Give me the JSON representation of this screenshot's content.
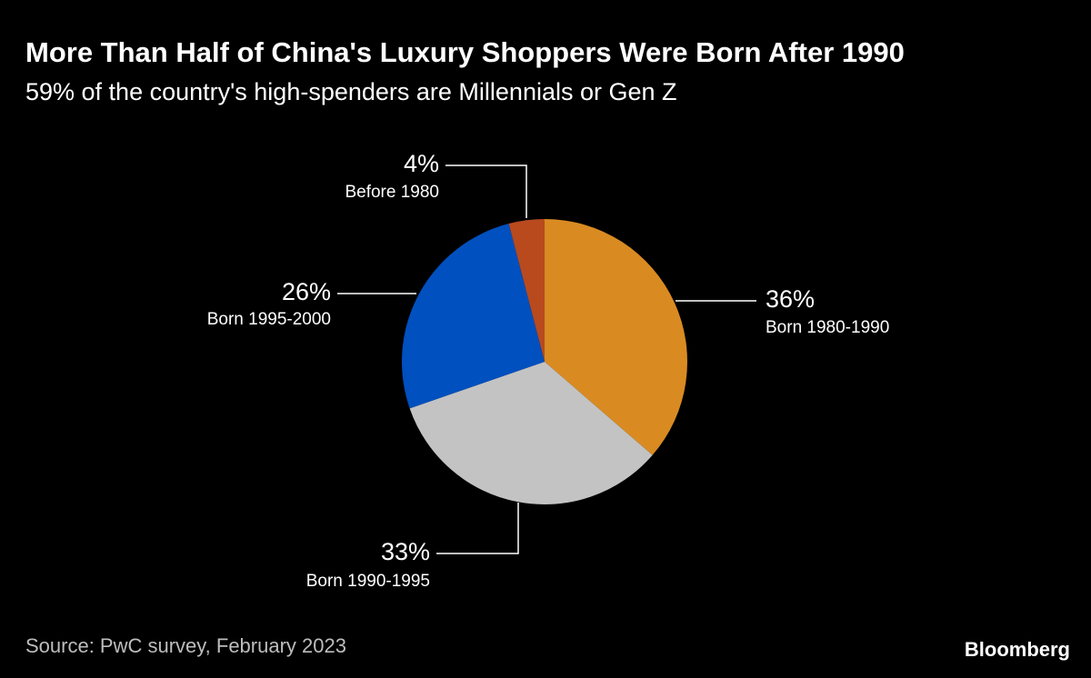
{
  "header": {
    "title": "More Than Half of China's Luxury Shoppers Were Born After 1990",
    "subtitle": "59% of the country's high-spenders are Millennials or Gen Z"
  },
  "footer": {
    "source": "Source: PwC survey, February 2023",
    "brand": "Bloomberg"
  },
  "chart_data": {
    "type": "pie",
    "start": "12 o'clock",
    "direction": "clockwise",
    "slices": [
      {
        "label": "Born 1980-1990",
        "value": 36,
        "value_label": "36%",
        "color": "#d98b22"
      },
      {
        "label": "Born 1990-1995",
        "value": 33,
        "value_label": "33%",
        "color": "#c3c3c3"
      },
      {
        "label": "Born 1995-2000",
        "value": 26,
        "value_label": "26%",
        "color": "#0050bf"
      },
      {
        "label": "Before 1980",
        "value": 4,
        "value_label": "4%",
        "color": "#b84a1e"
      }
    ]
  }
}
